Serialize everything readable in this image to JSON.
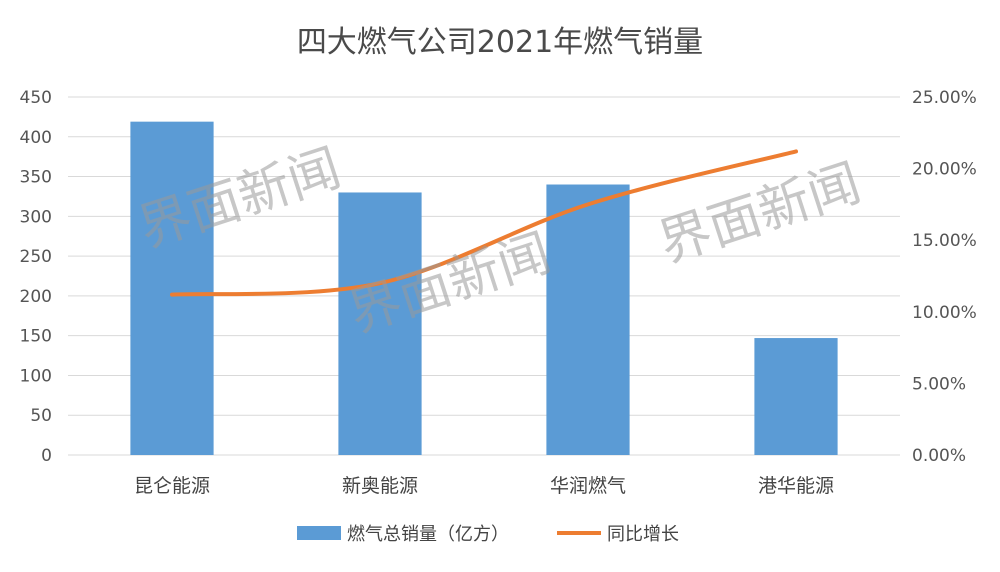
{
  "chart_data": {
    "type": "bar",
    "title": "四大燃气公司2021年燃气销量",
    "categories": [
      "昆仑能源",
      "新奥能源",
      "华润燃气",
      "港华能源"
    ],
    "series": [
      {
        "name": "燃气总销量（亿方）",
        "type": "bar",
        "axis": "left",
        "values": [
          419,
          330,
          340,
          147
        ],
        "color": "#5b9bd5"
      },
      {
        "name": "同比增长",
        "type": "line",
        "axis": "right",
        "values": [
          0.112,
          0.12,
          0.175,
          0.212
        ],
        "color": "#ed7d31"
      }
    ],
    "y_left": {
      "ylim": [
        0,
        450
      ],
      "ticks": [
        "0",
        "50",
        "100",
        "150",
        "200",
        "250",
        "300",
        "350",
        "400",
        "450"
      ]
    },
    "y_right": {
      "ylim": [
        0,
        0.25
      ],
      "ticks": [
        "0.00%",
        "5.00%",
        "10.00%",
        "15.00%",
        "20.00%",
        "25.00%"
      ]
    },
    "grid": true,
    "legend_position": "bottom"
  },
  "watermark": "界面新闻"
}
